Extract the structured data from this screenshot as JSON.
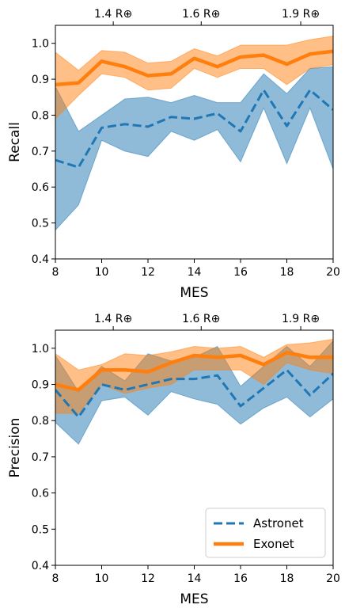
{
  "chart_data": [
    {
      "type": "line",
      "title": "",
      "xlabel": "MES",
      "ylabel": "Recall",
      "xlim": [
        8,
        20
      ],
      "ylim": [
        0.4,
        1.05
      ],
      "xticks": [
        "8",
        "10",
        "12",
        "14",
        "16",
        "18",
        "20"
      ],
      "yticks": [
        "0.4",
        "0.5",
        "0.6",
        "0.7",
        "0.8",
        "0.9",
        "1.0"
      ],
      "top_axis": {
        "tick_positions_mes": [
          10.5,
          14.3,
          18.6
        ],
        "tick_labels": [
          "1.4 R⊕",
          "1.6 R⊕",
          "1.9 R⊕"
        ]
      },
      "x": [
        8,
        9,
        10,
        11,
        12,
        13,
        14,
        15,
        16,
        17,
        18,
        19,
        20
      ],
      "series": [
        {
          "name": "Astronet",
          "color": "#1f77b4",
          "style": "dashed",
          "values": [
            0.675,
            0.655,
            0.765,
            0.775,
            0.768,
            0.795,
            0.79,
            0.805,
            0.755,
            0.87,
            0.77,
            0.87,
            0.815
          ],
          "lower": [
            0.48,
            0.55,
            0.73,
            0.7,
            0.685,
            0.755,
            0.73,
            0.76,
            0.67,
            0.82,
            0.665,
            0.82,
            0.65
          ],
          "upper": [
            0.88,
            0.755,
            0.8,
            0.845,
            0.85,
            0.835,
            0.855,
            0.835,
            0.835,
            0.915,
            0.86,
            0.93,
            0.935
          ]
        },
        {
          "name": "Exonet",
          "color": "#ff7f0e",
          "style": "solid",
          "values": [
            0.885,
            0.89,
            0.95,
            0.935,
            0.91,
            0.915,
            0.958,
            0.935,
            0.962,
            0.967,
            0.942,
            0.97,
            0.978
          ],
          "lower": [
            0.79,
            0.855,
            0.915,
            0.905,
            0.87,
            0.875,
            0.93,
            0.905,
            0.93,
            0.93,
            0.885,
            0.93,
            0.94
          ],
          "upper": [
            0.975,
            0.925,
            0.98,
            0.975,
            0.945,
            0.95,
            0.985,
            0.965,
            0.995,
            0.995,
            0.995,
            1.01,
            1.02
          ]
        }
      ],
      "legend": "none"
    },
    {
      "type": "line",
      "title": "",
      "xlabel": "MES",
      "ylabel": "Precision",
      "xlim": [
        8,
        20
      ],
      "ylim": [
        0.4,
        1.05
      ],
      "xticks": [
        "8",
        "10",
        "12",
        "14",
        "16",
        "18",
        "20"
      ],
      "yticks": [
        "0.4",
        "0.5",
        "0.6",
        "0.7",
        "0.8",
        "0.9",
        "1.0"
      ],
      "top_axis": {
        "tick_positions_mes": [
          10.5,
          14.3,
          18.6
        ],
        "tick_labels": [
          "1.4 R⊕",
          "1.6 R⊕",
          "1.9 R⊕"
        ]
      },
      "x": [
        8,
        9,
        10,
        11,
        12,
        13,
        14,
        15,
        16,
        17,
        18,
        19,
        20
      ],
      "series": [
        {
          "name": "Astronet",
          "color": "#1f77b4",
          "style": "dashed",
          "values": [
            0.885,
            0.81,
            0.9,
            0.885,
            0.9,
            0.915,
            0.915,
            0.925,
            0.84,
            0.89,
            0.94,
            0.87,
            0.93
          ],
          "lower": [
            0.795,
            0.735,
            0.855,
            0.865,
            0.815,
            0.88,
            0.86,
            0.845,
            0.79,
            0.835,
            0.865,
            0.81,
            0.86
          ],
          "upper": [
            0.98,
            0.88,
            0.95,
            0.91,
            0.985,
            0.965,
            0.975,
            1.005,
            0.895,
            0.95,
            1.005,
            0.95,
            1.02
          ]
        },
        {
          "name": "Exonet",
          "color": "#ff7f0e",
          "style": "solid",
          "values": [
            0.9,
            0.885,
            0.94,
            0.94,
            0.935,
            0.96,
            0.98,
            0.975,
            0.98,
            0.955,
            0.988,
            0.975,
            0.975
          ],
          "lower": [
            0.82,
            0.82,
            0.9,
            0.875,
            0.89,
            0.9,
            0.94,
            0.94,
            0.94,
            0.9,
            0.96,
            0.94,
            0.93
          ],
          "upper": [
            0.985,
            0.94,
            0.955,
            0.985,
            0.98,
            0.99,
            1.005,
            1.0,
            1.005,
            0.975,
            1.01,
            1.015,
            1.025
          ]
        }
      ],
      "legend": "bottom-right"
    }
  ]
}
